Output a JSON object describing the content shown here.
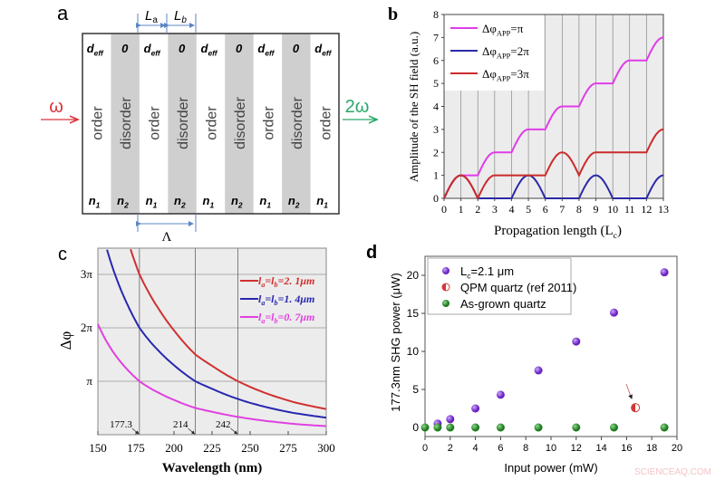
{
  "panel_a": {
    "label": "a",
    "top_labels": [
      [
        "d",
        "eff"
      ],
      [
        "0",
        ""
      ],
      [
        "d",
        "eff"
      ],
      [
        "0",
        ""
      ],
      [
        "d",
        "eff"
      ],
      [
        "0",
        ""
      ],
      [
        "d",
        "eff"
      ],
      [
        "0",
        ""
      ],
      [
        "d",
        "eff"
      ]
    ],
    "middle_labels": [
      "order",
      "disorder",
      "order",
      "disorder",
      "order",
      "disorder",
      "order",
      "disorder",
      "order"
    ],
    "bottom_labels": [
      [
        "n",
        "1"
      ],
      [
        "n",
        "2"
      ],
      [
        "n",
        "1"
      ],
      [
        "n",
        "2"
      ],
      [
        "n",
        "1"
      ],
      [
        "n",
        "2"
      ],
      [
        "n",
        "1"
      ],
      [
        "n",
        "2"
      ],
      [
        "n",
        "1"
      ]
    ],
    "la_label": "L",
    "la_sub": "a",
    "lb_label": "L",
    "lb_sub": "b",
    "period_label": "Λ",
    "input_label": "ω",
    "output_label": "2ω",
    "colors": {
      "disorder": "#cfcfcf",
      "input": "#d9343a",
      "output": "#2aa86a",
      "dimension": "#5b87c5"
    }
  },
  "chart_data": [
    {
      "panel": "b",
      "type": "line",
      "xlabel": "Propagation length (L",
      "xlabel_sub": "c",
      "xlabel_end": ")",
      "ylabel": "Amplitude of the SH field (a.u.)",
      "xlim": [
        0,
        13
      ],
      "ylim": [
        0,
        8
      ],
      "xticks": [
        "0",
        "1",
        "2",
        "3",
        "4",
        "5",
        "6",
        "7",
        "8",
        "9",
        "10",
        "11",
        "12",
        "13"
      ],
      "yticks": [
        "0",
        "1",
        "2",
        "3",
        "4",
        "5",
        "6",
        "7",
        "8"
      ],
      "grid": "vertical lines at each integer",
      "legend": "top-left",
      "x": [
        0,
        1,
        2,
        3,
        4,
        5,
        6,
        7,
        8,
        9,
        10,
        11,
        12,
        13
      ],
      "series": [
        {
          "name": "Δφ",
          "name_sub": "APP",
          "name_end": "=π",
          "color": "#e03ce8",
          "values": [
            0,
            1,
            1,
            2,
            2,
            3,
            3,
            4,
            4,
            5,
            5,
            6,
            6,
            7
          ]
        },
        {
          "name": "Δφ",
          "name_sub": "APP",
          "name_end": "=2π",
          "color": "#2a2aa8",
          "values": [
            0,
            1,
            0,
            0,
            0,
            1,
            0,
            0,
            0,
            1,
            0,
            0,
            0,
            1
          ]
        },
        {
          "name": "Δφ",
          "name_sub": "APP",
          "name_end": "=3π",
          "color": "#cc2b2b",
          "values": [
            0,
            1,
            0,
            1,
            1,
            1,
            1,
            2,
            1,
            2,
            2,
            2,
            2,
            3
          ]
        }
      ]
    },
    {
      "panel": "c",
      "type": "line",
      "xlabel": "Wavelength (nm)",
      "ylabel": "Δφ",
      "xlim": [
        150,
        300
      ],
      "ylim_in_pi": [
        0,
        3.5
      ],
      "xticks": [
        "150",
        "175",
        "200",
        "225",
        "250",
        "275",
        "300"
      ],
      "yticks": [
        "π",
        "2π",
        "3π"
      ],
      "grid": "horizontal at π, 2π, 3π; vertical at 177.3, 214, 242",
      "legend": "top-right",
      "annotations": [
        "177.3",
        "214",
        "242"
      ],
      "x": [
        150,
        155,
        160,
        165,
        170,
        177.3,
        185,
        200,
        214,
        225,
        242,
        260,
        280,
        300
      ],
      "series": [
        {
          "name": "l",
          "name_a": "a",
          "name_mid": "=l",
          "name_b": "b",
          "name_end": "=2. 1μm",
          "color": "#d03030",
          "values_in_pi": [
            6.21,
            5.34,
            4.65,
            4.08,
            3.6,
            3.0,
            2.58,
            1.95,
            1.5,
            1.29,
            1.0,
            0.78,
            0.6,
            0.48
          ]
        },
        {
          "name": "l",
          "name_a": "a",
          "name_mid": "=l",
          "name_b": "b",
          "name_end": "=1. 4μm",
          "color": "#2828b0",
          "values_in_pi": [
            4.14,
            3.56,
            3.1,
            2.72,
            2.4,
            2.0,
            1.72,
            1.3,
            1.0,
            0.86,
            0.667,
            0.52,
            0.4,
            0.32
          ]
        },
        {
          "name": "l",
          "name_a": "a",
          "name_mid": "=l",
          "name_b": "b",
          "name_end": "=0. 7μm",
          "color": "#e040e0",
          "values_in_pi": [
            2.07,
            1.78,
            1.55,
            1.36,
            1.2,
            1.0,
            0.86,
            0.65,
            0.5,
            0.43,
            0.333,
            0.26,
            0.2,
            0.16
          ]
        }
      ]
    },
    {
      "panel": "d",
      "type": "scatter",
      "xlabel": "Input power (mW)",
      "ylabel": "177.3nm SHG power (μW)",
      "xlim": [
        0,
        20
      ],
      "ylim": [
        -1,
        22
      ],
      "xticks": [
        "0",
        "2",
        "4",
        "6",
        "8",
        "10",
        "12",
        "14",
        "16",
        "18",
        "20"
      ],
      "yticks": [
        "0",
        "5",
        "10",
        "15",
        "20"
      ],
      "legend": "top-left",
      "series": [
        {
          "name": "L",
          "name_sub": "c",
          "name_end": "=2.1 μm",
          "color": "#7b2fd0",
          "points": [
            [
              1,
              0.5
            ],
            [
              2,
              1.1
            ],
            [
              4,
              2.5
            ],
            [
              6,
              4.3
            ],
            [
              9,
              7.5
            ],
            [
              12,
              11.3
            ],
            [
              15,
              15.1
            ],
            [
              19,
              20.4
            ]
          ]
        },
        {
          "name": "QPM quartz (ref 2011)",
          "color": "#d03a3a",
          "points": [
            [
              16.7,
              2.6
            ]
          ]
        },
        {
          "name": "As-grown quartz",
          "color": "#2a8a2a",
          "points": [
            [
              0,
              0
            ],
            [
              1,
              0
            ],
            [
              2,
              0
            ],
            [
              4,
              0
            ],
            [
              6,
              0
            ],
            [
              9,
              0
            ],
            [
              12,
              0
            ],
            [
              15,
              0
            ],
            [
              19,
              0
            ]
          ]
        }
      ]
    }
  ],
  "panel_labels": {
    "b": "b",
    "c": "c",
    "d": "d"
  },
  "watermark": "SCIENCEAQ.COM"
}
